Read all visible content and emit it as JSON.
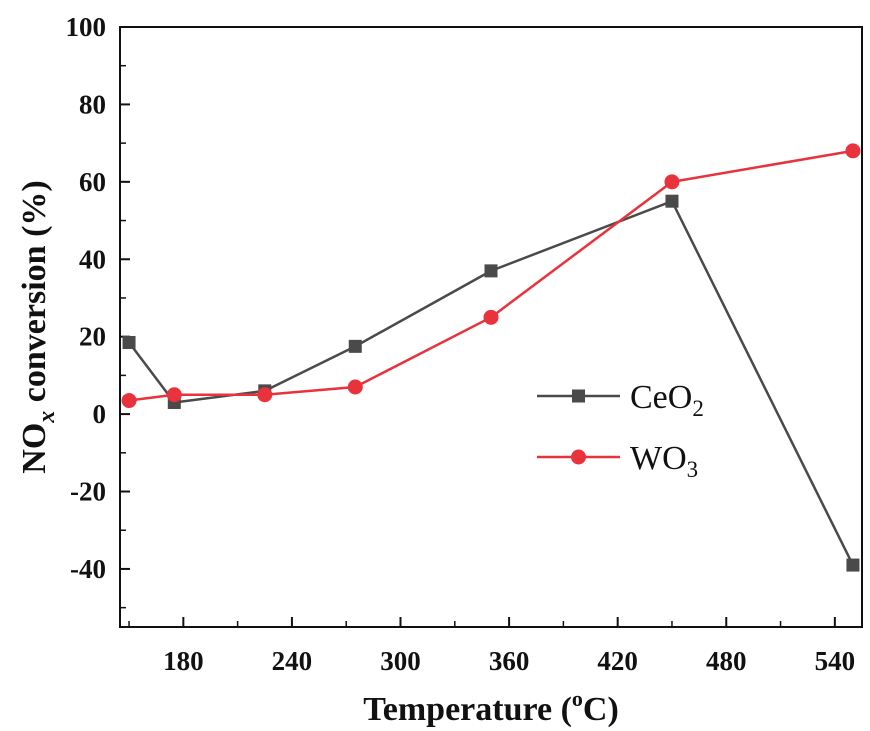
{
  "chart_data": {
    "type": "line",
    "xlabel": {
      "prefix": "Temperature (",
      "sup": "o",
      "suffix": "C)"
    },
    "ylabel": {
      "prefix": "NO",
      "sub": "x",
      "suffix": " conversion (%)"
    },
    "xlim": [
      145,
      555
    ],
    "ylim": [
      -55,
      100
    ],
    "xticks": [
      180,
      240,
      300,
      360,
      420,
      480,
      540
    ],
    "yticks": [
      100,
      80,
      60,
      40,
      20,
      0,
      -20,
      -40
    ],
    "xtick_labels": [
      "180",
      "240",
      "300",
      "360",
      "420",
      "480",
      "540"
    ],
    "ytick_labels": [
      "100",
      "80",
      "60",
      "40",
      "20",
      "0",
      "-20",
      "-40"
    ],
    "legend_position": "middle-right",
    "grid": false,
    "series": [
      {
        "name_main": "CeO",
        "name_sub": "2",
        "marker": "square",
        "color": "#4a4a4a",
        "x": [
          150,
          175,
          225,
          275,
          350,
          450,
          550
        ],
        "y": [
          18.5,
          3,
          6,
          17.5,
          37,
          55,
          -39
        ]
      },
      {
        "name_main": "WO",
        "name_sub": "3",
        "marker": "circle",
        "color": "#e8323c",
        "x": [
          150,
          175,
          225,
          275,
          350,
          450,
          550
        ],
        "y": [
          3.5,
          5,
          5,
          7,
          25,
          60,
          68
        ]
      }
    ]
  }
}
